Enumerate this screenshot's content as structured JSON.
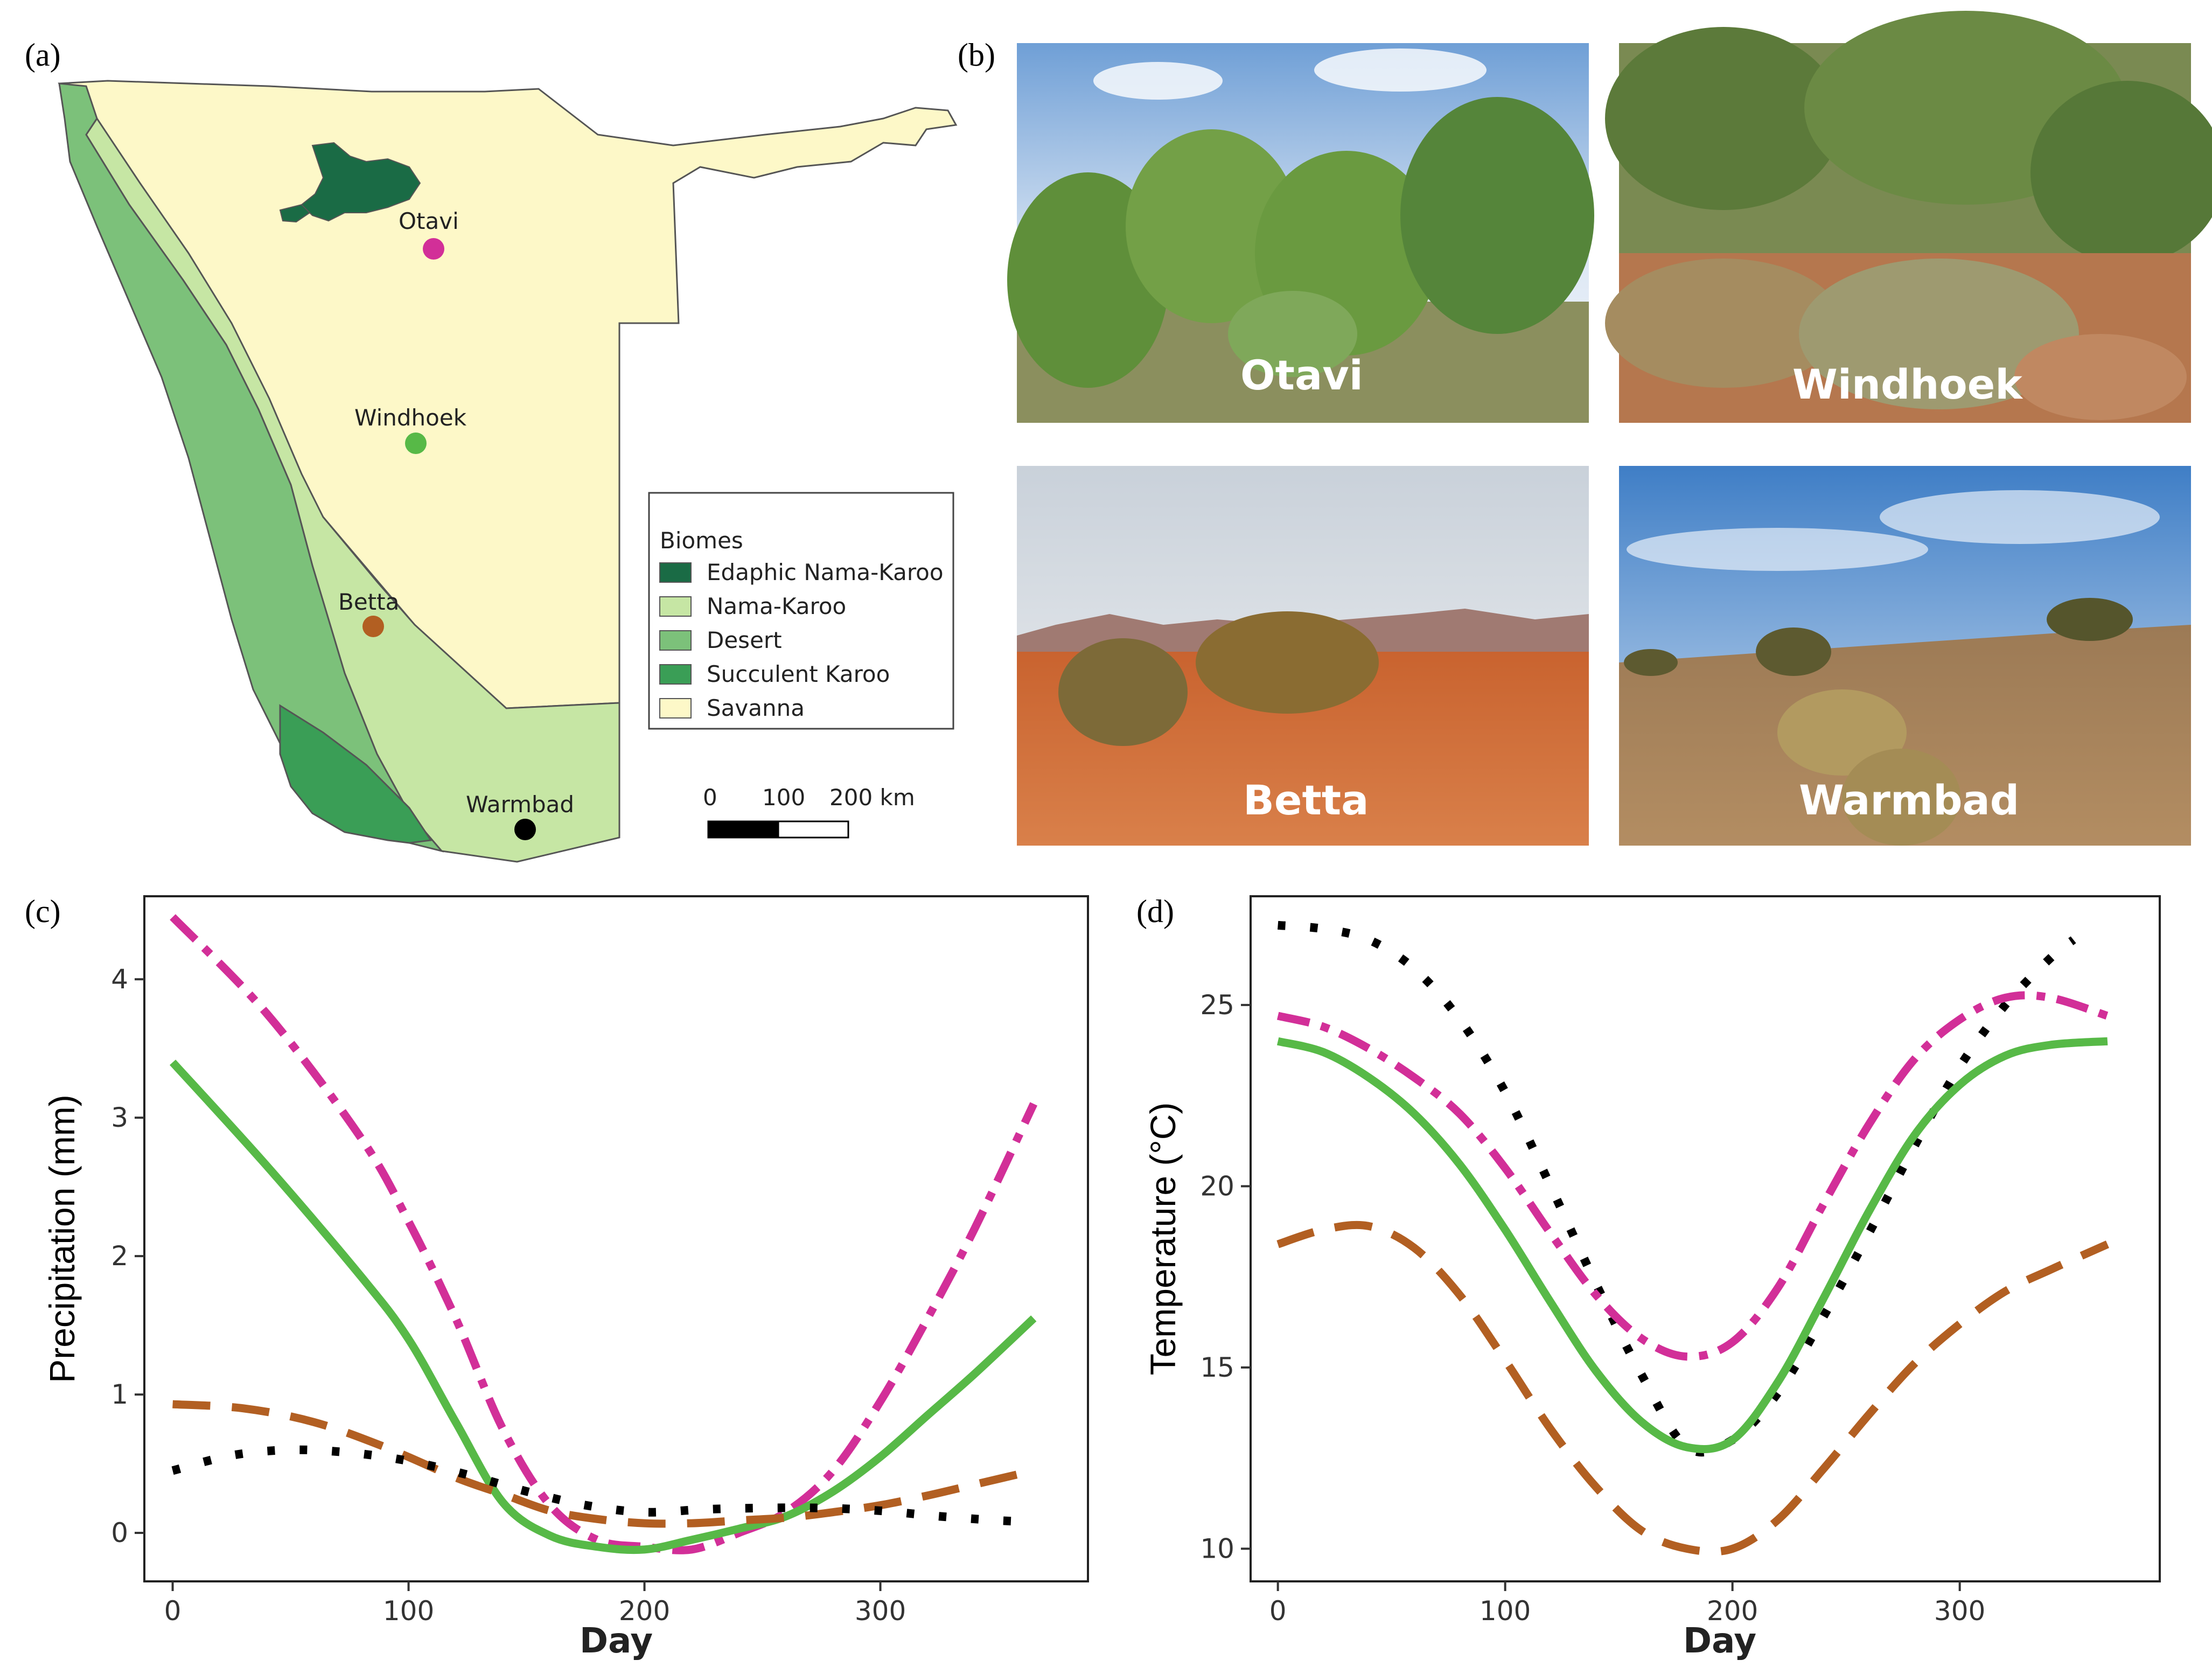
{
  "panels": {
    "a": "(a)",
    "b": "(b)",
    "c": "(c)",
    "d": "(d)"
  },
  "map": {
    "sites": [
      {
        "name": "Otavi",
        "color": "#d22f98"
      },
      {
        "name": "Windhoek",
        "color": "#57b947"
      },
      {
        "name": "Betta",
        "color": "#b25f22"
      },
      {
        "name": "Warmbad",
        "color": "#000000"
      }
    ],
    "legend": {
      "title": "Biomes",
      "items": [
        {
          "label": "Edaphic Nama-Karoo",
          "color": "#1a6b45"
        },
        {
          "label": "Nama-Karoo",
          "color": "#c6e6a4"
        },
        {
          "label": "Desert",
          "color": "#7cc17a"
        },
        {
          "label": "Succulent Karoo",
          "color": "#3a9e56"
        },
        {
          "label": "Savanna",
          "color": "#fdf8c8"
        }
      ]
    },
    "scale": {
      "ticks": [
        "0",
        "100",
        "200 km"
      ]
    }
  },
  "photos": [
    {
      "label": "Otavi"
    },
    {
      "label": "Windhoek"
    },
    {
      "label": "Betta"
    },
    {
      "label": "Warmbad"
    }
  ],
  "chart_data": [
    {
      "type": "line",
      "xlabel": "Day",
      "ylabel": "Precipitation (mm)",
      "xlim": [
        -12,
        388
      ],
      "ylim": [
        -0.35,
        4.6
      ],
      "xticks": [
        0,
        100,
        200,
        300
      ],
      "yticks": [
        0,
        1,
        2,
        3,
        4
      ],
      "series": [
        {
          "color": "#d22f98",
          "style": "longdash-dot",
          "x": [
            0,
            40,
            80,
            100,
            120,
            140,
            160,
            180,
            200,
            220,
            240,
            260,
            280,
            300,
            320,
            340,
            365
          ],
          "y": [
            4.45,
            3.75,
            2.85,
            2.25,
            1.55,
            0.75,
            0.2,
            -0.05,
            -0.1,
            -0.12,
            0.0,
            0.15,
            0.45,
            0.95,
            1.55,
            2.2,
            3.1
          ]
        },
        {
          "color": "#57b947",
          "style": "solid",
          "x": [
            0,
            40,
            80,
            100,
            120,
            140,
            160,
            180,
            200,
            220,
            240,
            260,
            280,
            300,
            320,
            340,
            365
          ],
          "y": [
            3.4,
            2.65,
            1.85,
            1.4,
            0.8,
            0.22,
            -0.02,
            -0.1,
            -0.12,
            -0.05,
            0.03,
            0.12,
            0.3,
            0.55,
            0.85,
            1.15,
            1.55
          ]
        },
        {
          "color": "#b25f22",
          "style": "longdash",
          "x": [
            0,
            30,
            60,
            90,
            120,
            140,
            160,
            180,
            200,
            220,
            240,
            260,
            280,
            300,
            320,
            340,
            365
          ],
          "y": [
            0.93,
            0.9,
            0.8,
            0.62,
            0.4,
            0.28,
            0.16,
            0.1,
            0.07,
            0.07,
            0.09,
            0.11,
            0.15,
            0.2,
            0.27,
            0.35,
            0.45
          ]
        },
        {
          "color": "#000000",
          "style": "dotted",
          "x": [
            0,
            25,
            50,
            75,
            100,
            125,
            150,
            175,
            200,
            225,
            250,
            275,
            300,
            325,
            350,
            365
          ],
          "y": [
            0.45,
            0.56,
            0.6,
            0.58,
            0.52,
            0.42,
            0.3,
            0.2,
            0.15,
            0.17,
            0.18,
            0.18,
            0.16,
            0.12,
            0.09,
            0.08
          ]
        }
      ]
    },
    {
      "type": "line",
      "xlabel": "Day",
      "ylabel": "Temperature (°C)",
      "xlim": [
        -12,
        388
      ],
      "ylim": [
        9.1,
        28.0
      ],
      "xticks": [
        0,
        100,
        200,
        300
      ],
      "yticks": [
        10,
        15,
        20,
        25
      ],
      "series": [
        {
          "color": "#000000",
          "style": "dotted",
          "x": [
            0,
            20,
            40,
            60,
            80,
            100,
            120,
            140,
            160,
            180,
            200,
            220,
            240,
            260,
            280,
            300,
            320,
            340,
            350
          ],
          "y": [
            27.2,
            27.1,
            26.8,
            26.0,
            24.6,
            22.6,
            20.0,
            17.3,
            14.8,
            12.8,
            13.0,
            14.3,
            16.4,
            18.7,
            21.1,
            23.3,
            25.0,
            26.3,
            26.8
          ]
        },
        {
          "color": "#d22f98",
          "style": "longdash-dot",
          "x": [
            0,
            20,
            40,
            60,
            80,
            100,
            120,
            140,
            160,
            180,
            200,
            220,
            240,
            260,
            280,
            300,
            320,
            340,
            365
          ],
          "y": [
            24.7,
            24.4,
            23.8,
            23.0,
            22.0,
            20.5,
            18.7,
            17.0,
            15.8,
            15.3,
            15.7,
            17.2,
            19.5,
            21.7,
            23.5,
            24.6,
            25.2,
            25.2,
            24.7
          ]
        },
        {
          "color": "#57b947",
          "style": "solid",
          "x": [
            0,
            20,
            40,
            60,
            80,
            100,
            120,
            140,
            160,
            180,
            200,
            220,
            240,
            260,
            280,
            300,
            320,
            340,
            365
          ],
          "y": [
            24.0,
            23.7,
            23.0,
            22.0,
            20.6,
            18.8,
            16.8,
            14.9,
            13.5,
            12.8,
            13.0,
            14.6,
            16.9,
            19.3,
            21.4,
            22.8,
            23.6,
            23.9,
            24.0
          ]
        },
        {
          "color": "#b25f22",
          "style": "longdash",
          "x": [
            0,
            20,
            40,
            60,
            80,
            100,
            120,
            140,
            160,
            180,
            200,
            220,
            240,
            260,
            280,
            300,
            320,
            340,
            365
          ],
          "y": [
            18.4,
            18.8,
            18.9,
            18.3,
            17.0,
            15.2,
            13.3,
            11.7,
            10.5,
            10.0,
            10.0,
            10.8,
            12.2,
            13.7,
            15.1,
            16.2,
            17.1,
            17.7,
            18.4
          ]
        }
      ]
    }
  ]
}
